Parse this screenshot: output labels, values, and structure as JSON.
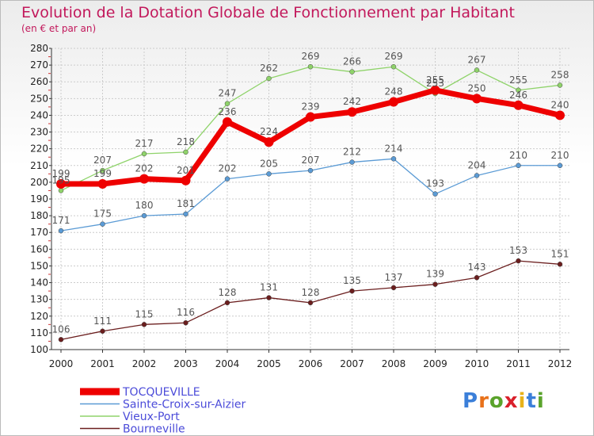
{
  "chart_data": {
    "type": "line",
    "title": "Evolution de la Dotation Globale de Fonctionnement par Habitant",
    "subtitle": "(en € et par an)",
    "xlabel": "",
    "ylabel": "",
    "x": [
      "2000",
      "2001",
      "2002",
      "2003",
      "2004",
      "2005",
      "2006",
      "2007",
      "2008",
      "2009",
      "2010",
      "2011",
      "2012"
    ],
    "ylim": [
      100,
      280
    ],
    "yticks": [
      100,
      110,
      120,
      130,
      140,
      150,
      160,
      170,
      180,
      190,
      200,
      210,
      220,
      230,
      240,
      250,
      260,
      270,
      280
    ],
    "grid": true,
    "legend_position": "bottom-left",
    "series": [
      {
        "name": "Vieux-Port",
        "color": "#8fd36a",
        "values": [
          195,
          207,
          217,
          218,
          247,
          262,
          269,
          266,
          269,
          253,
          267,
          255,
          258
        ]
      },
      {
        "name": "Sainte-Croix-sur-Aizier",
        "color": "#5b9bd5",
        "values": [
          171,
          175,
          180,
          181,
          202,
          205,
          207,
          212,
          214,
          193,
          204,
          210,
          210
        ]
      },
      {
        "name": "Bourneville",
        "color": "#6b1e1e",
        "values": [
          106,
          111,
          115,
          116,
          128,
          131,
          128,
          135,
          137,
          139,
          143,
          153,
          151
        ]
      },
      {
        "name": "TOCQUEVILLE",
        "color": "#ee0000",
        "values": [
          199,
          199,
          202,
          201,
          236,
          224,
          239,
          242,
          248,
          255,
          250,
          246,
          240
        ]
      }
    ]
  },
  "legend": {
    "items": [
      {
        "label": "TOCQUEVILLE",
        "color": "#ee0000"
      },
      {
        "label": "Sainte-Croix-sur-Aizier",
        "color": "#5b9bd5"
      },
      {
        "label": "Vieux-Port",
        "color": "#8fd36a"
      },
      {
        "label": "Bourneville",
        "color": "#6b1e1e"
      }
    ]
  },
  "logo": {
    "text": "Proxiti",
    "letter_colors": [
      "#3b7fd9",
      "#e8711a",
      "#5aa32b",
      "#d9202b",
      "#e8b21a",
      "#3b7fd9",
      "#5aa32b"
    ]
  }
}
